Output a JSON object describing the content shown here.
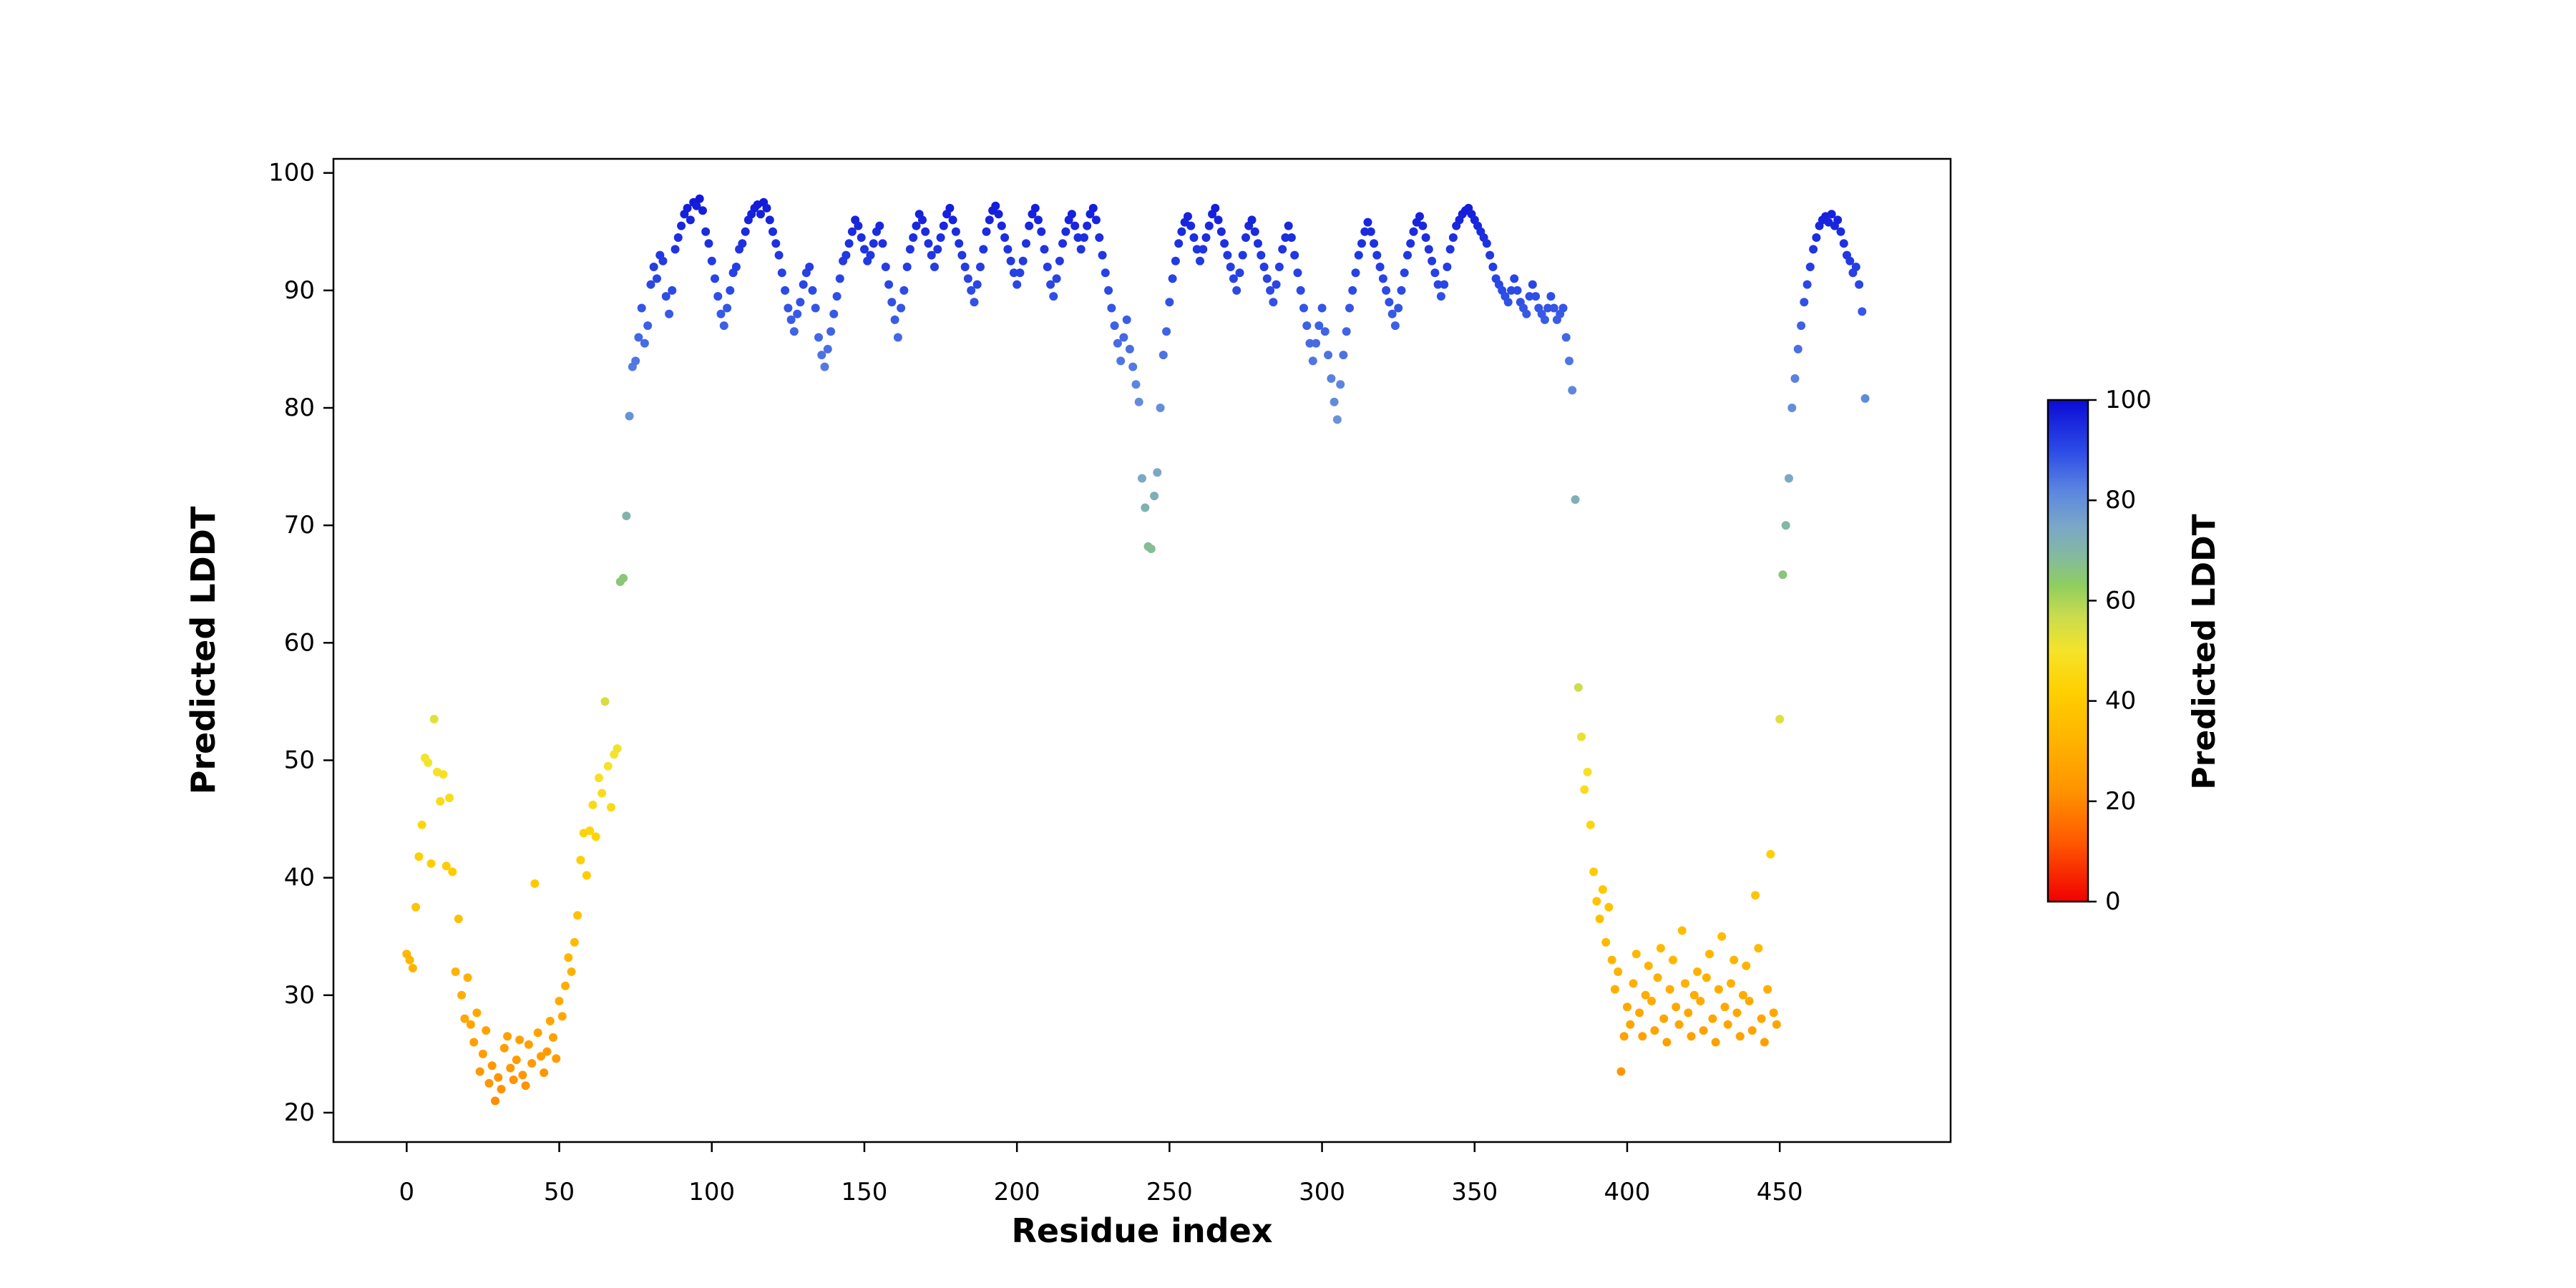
{
  "figure": {
    "background_color": "#ffffff",
    "axes_color": "#000000"
  },
  "chart_data": {
    "type": "scatter",
    "title": "",
    "xlabel": "Residue index",
    "ylabel": "Predicted LDDT",
    "xlim": [
      -24,
      506
    ],
    "ylim": [
      17.5,
      101.2
    ],
    "xticks": [
      0,
      50,
      100,
      150,
      200,
      250,
      300,
      350,
      400,
      450
    ],
    "yticks": [
      20,
      30,
      40,
      50,
      60,
      70,
      80,
      90,
      100
    ],
    "grid": false,
    "legend": "none",
    "marker": {
      "shape": "circle",
      "radius_px": 6
    },
    "colorbar": {
      "label": "Predicted LDDT",
      "ticks": [
        0,
        20,
        40,
        60,
        80,
        100
      ],
      "vmin": 0,
      "vmax": 100
    },
    "colormap_stops": [
      [
        0,
        "#f10000"
      ],
      [
        12,
        "#ff5a00"
      ],
      [
        22,
        "#ff9300"
      ],
      [
        32,
        "#ffb300"
      ],
      [
        42,
        "#ffd000"
      ],
      [
        50,
        "#f5e32a"
      ],
      [
        57,
        "#c9dc4e"
      ],
      [
        63,
        "#8fce5f"
      ],
      [
        69,
        "#84b9a0"
      ],
      [
        75,
        "#7aa6c8"
      ],
      [
        82,
        "#5b85e0"
      ],
      [
        90,
        "#2b4ae6"
      ],
      [
        100,
        "#0b0bd6"
      ]
    ],
    "x_start": 0,
    "x_step": 1,
    "y": [
      33.5,
      33.0,
      32.3,
      37.5,
      41.8,
      44.5,
      50.2,
      49.8,
      41.2,
      53.5,
      49.0,
      46.5,
      48.8,
      41.0,
      46.8,
      40.5,
      32.0,
      36.5,
      30.0,
      28.0,
      31.5,
      27.5,
      26.0,
      28.5,
      23.5,
      25.0,
      27.0,
      22.5,
      24.0,
      21.0,
      23.0,
      22.0,
      25.5,
      26.5,
      23.8,
      22.8,
      24.5,
      26.2,
      23.2,
      22.3,
      25.8,
      24.2,
      39.5,
      26.8,
      24.8,
      23.4,
      25.2,
      27.8,
      26.4,
      24.6,
      29.5,
      28.2,
      30.8,
      33.2,
      32.0,
      34.5,
      36.8,
      41.5,
      43.8,
      40.2,
      44.0,
      46.2,
      43.5,
      48.5,
      47.2,
      55.0,
      49.5,
      46.0,
      50.5,
      51.0,
      65.2,
      65.5,
      70.8,
      79.3,
      83.5,
      84.0,
      86.0,
      88.5,
      85.5,
      87.0,
      90.5,
      92.0,
      91.0,
      93.0,
      92.5,
      89.5,
      88.0,
      90.0,
      93.5,
      94.5,
      95.5,
      96.5,
      97.0,
      96.0,
      97.5,
      97.2,
      97.8,
      96.8,
      95.0,
      94.0,
      92.5,
      91.0,
      89.5,
      88.0,
      87.0,
      88.5,
      90.0,
      91.5,
      92.0,
      93.5,
      94.0,
      95.0,
      96.0,
      96.5,
      97.0,
      97.3,
      96.5,
      97.5,
      97.0,
      96.0,
      95.0,
      94.0,
      93.0,
      91.5,
      90.0,
      88.5,
      87.5,
      86.5,
      88.0,
      89.0,
      90.5,
      91.5,
      92.0,
      90.0,
      88.5,
      86.0,
      84.5,
      83.5,
      85.0,
      86.5,
      88.0,
      89.5,
      91.0,
      92.5,
      93.0,
      94.0,
      95.0,
      96.0,
      95.5,
      94.5,
      93.5,
      92.5,
      93.0,
      94.0,
      95.0,
      95.5,
      94.0,
      92.0,
      90.5,
      89.0,
      87.5,
      86.0,
      88.5,
      90.0,
      92.0,
      93.5,
      94.5,
      95.5,
      96.5,
      96.0,
      95.0,
      94.0,
      93.0,
      92.0,
      93.5,
      94.5,
      95.5,
      96.5,
      97.0,
      96.0,
      95.0,
      94.0,
      93.0,
      92.0,
      91.0,
      90.0,
      89.0,
      90.5,
      92.0,
      93.5,
      95.0,
      96.0,
      96.8,
      97.2,
      96.5,
      95.5,
      94.5,
      93.5,
      92.5,
      91.5,
      90.5,
      91.5,
      92.5,
      94.0,
      95.5,
      96.5,
      97.0,
      96.0,
      95.0,
      93.5,
      92.0,
      90.5,
      89.5,
      91.0,
      92.5,
      94.0,
      95.0,
      96.0,
      96.5,
      95.5,
      94.5,
      93.5,
      94.5,
      95.5,
      96.5,
      97.0,
      96.0,
      94.5,
      93.0,
      91.5,
      90.0,
      88.5,
      87.0,
      85.5,
      84.0,
      86.0,
      87.5,
      85.0,
      83.5,
      82.0,
      80.5,
      74.0,
      71.5,
      68.2,
      68.0,
      72.5,
      74.5,
      80.0,
      84.5,
      86.5,
      89.0,
      91.0,
      92.5,
      94.0,
      95.0,
      95.8,
      96.3,
      95.5,
      94.5,
      93.5,
      92.5,
      93.5,
      94.5,
      95.5,
      96.5,
      97.0,
      96.0,
      95.0,
      94.0,
      93.0,
      92.0,
      91.0,
      90.0,
      91.5,
      93.0,
      94.5,
      95.5,
      96.0,
      95.0,
      94.0,
      93.0,
      92.0,
      91.0,
      90.0,
      89.0,
      90.5,
      92.0,
      93.5,
      94.5,
      95.5,
      94.5,
      93.0,
      91.5,
      90.0,
      88.5,
      87.0,
      85.5,
      84.0,
      85.5,
      87.0,
      88.5,
      86.5,
      84.5,
      82.5,
      80.5,
      79.0,
      82.0,
      84.5,
      86.5,
      88.5,
      90.0,
      91.5,
      93.0,
      94.0,
      95.0,
      95.8,
      95.0,
      94.0,
      93.0,
      92.0,
      91.0,
      90.0,
      89.0,
      88.0,
      87.0,
      88.5,
      90.0,
      91.5,
      93.0,
      94.0,
      95.0,
      95.8,
      96.3,
      95.5,
      94.5,
      93.5,
      92.5,
      91.5,
      90.5,
      89.5,
      90.5,
      92.0,
      93.5,
      94.5,
      95.5,
      96.0,
      96.5,
      96.8,
      97.0,
      96.5,
      96.0,
      95.5,
      95.0,
      94.5,
      94.0,
      93.0,
      92.0,
      91.0,
      90.5,
      90.0,
      89.5,
      89.0,
      90.0,
      91.0,
      90.0,
      89.0,
      88.5,
      88.0,
      89.5,
      90.5,
      89.5,
      88.5,
      88.0,
      87.5,
      88.5,
      89.5,
      88.5,
      87.5,
      88.0,
      88.5,
      86.0,
      84.0,
      81.5,
      72.2,
      56.2,
      52.0,
      47.5,
      49.0,
      44.5,
      40.5,
      38.0,
      36.5,
      39.0,
      34.5,
      37.5,
      33.0,
      30.5,
      32.0,
      23.5,
      26.5,
      29.0,
      27.5,
      31.0,
      33.5,
      28.5,
      26.5,
      30.0,
      32.5,
      29.5,
      27.0,
      31.5,
      34.0,
      28.0,
      26.0,
      30.5,
      33.0,
      29.0,
      27.5,
      35.5,
      31.0,
      28.5,
      26.5,
      30.0,
      32.0,
      29.5,
      27.0,
      31.5,
      33.5,
      28.0,
      26.0,
      30.5,
      35.0,
      29.0,
      27.5,
      31.0,
      33.0,
      28.5,
      26.5,
      30.0,
      32.5,
      29.5,
      27.0,
      38.5,
      34.0,
      28.0,
      26.0,
      30.5,
      42.0,
      28.5,
      27.5,
      53.5,
      65.8,
      70.0,
      74.0,
      80.0,
      82.5,
      85.0,
      87.0,
      89.0,
      90.5,
      92.0,
      93.5,
      94.5,
      95.5,
      96.0,
      96.3,
      95.8,
      96.5,
      95.5,
      96.0,
      95.0,
      94.0,
      93.0,
      92.5,
      91.5,
      92.0,
      90.5,
      88.2,
      80.8
    ]
  }
}
